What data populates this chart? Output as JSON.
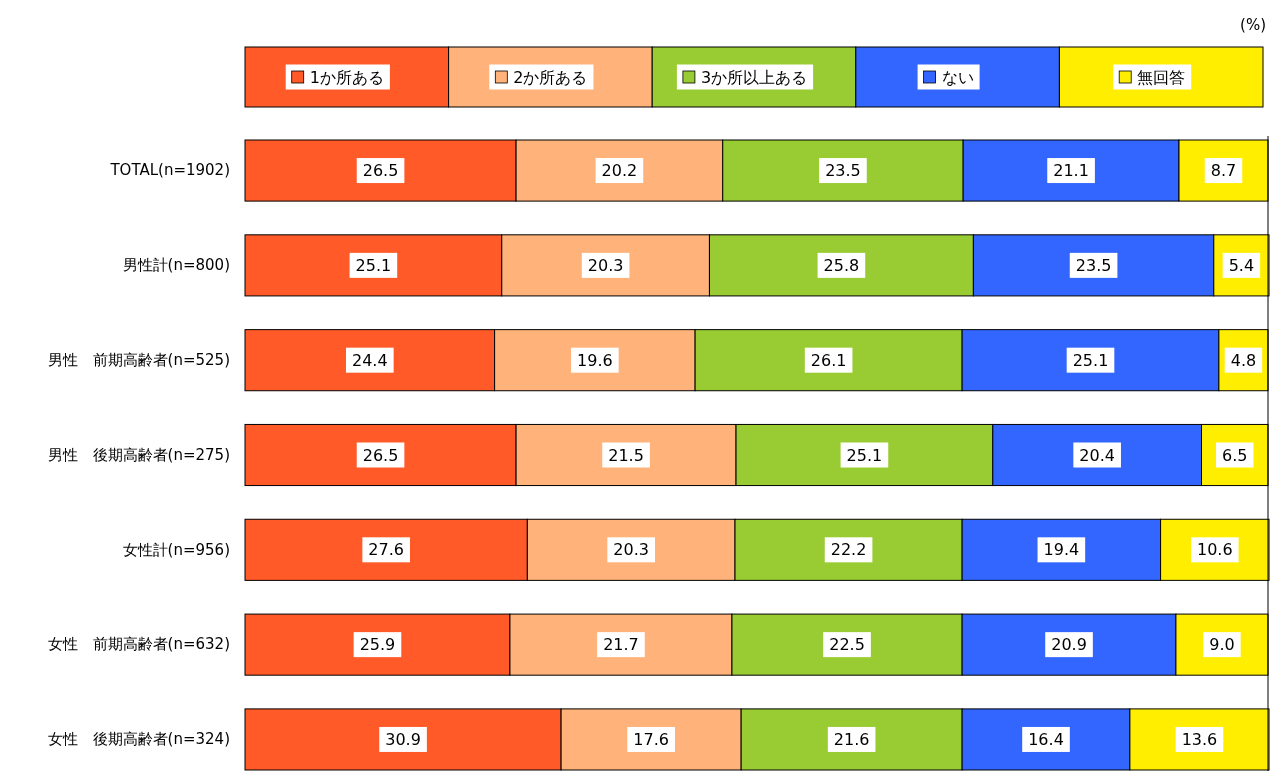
{
  "chart_data": {
    "type": "bar",
    "orientation": "horizontal",
    "stacked": true,
    "annotations": [
      "(%)"
    ],
    "categories": [
      "TOTAL(n=1902)",
      "男性計(n=800)",
      "男性　前期高齢者(n=525)",
      "男性　後期高齢者(n=275)",
      "女性計(n=956)",
      "女性　前期高齢者(n=632)",
      "女性　後期高齢者(n=324)"
    ],
    "series": [
      {
        "name": "1か所ある",
        "color": "#ff5a28",
        "values": [
          26.5,
          25.1,
          24.4,
          26.5,
          27.6,
          25.9,
          30.9
        ],
        "value_labels": [
          "26.5",
          "25.1",
          "24.4",
          "26.5",
          "27.6",
          "25.9",
          "30.9"
        ]
      },
      {
        "name": "2か所ある",
        "color": "#ffb27a",
        "values": [
          20.2,
          20.3,
          19.6,
          21.5,
          20.3,
          21.7,
          17.6
        ],
        "value_labels": [
          "20.2",
          "20.3",
          "19.6",
          "21.5",
          "20.3",
          "21.7",
          "17.6"
        ]
      },
      {
        "name": "3か所以上ある",
        "color": "#99cc33",
        "values": [
          23.5,
          25.8,
          26.1,
          25.1,
          22.2,
          22.5,
          21.6
        ],
        "value_labels": [
          "23.5",
          "25.8",
          "26.1",
          "25.1",
          "22.2",
          "22.5",
          "21.6"
        ]
      },
      {
        "name": "ない",
        "color": "#3366ff",
        "values": [
          21.1,
          23.5,
          25.1,
          20.4,
          19.4,
          20.9,
          16.4
        ],
        "value_labels": [
          "21.1",
          "23.5",
          "25.1",
          "20.4",
          "19.4",
          "20.9",
          "16.4"
        ]
      },
      {
        "name": "無回答",
        "color": "#ffee00",
        "values": [
          8.7,
          5.4,
          4.8,
          6.5,
          10.6,
          9.0,
          13.6
        ],
        "value_labels": [
          "8.7",
          "5.4",
          "4.8",
          "6.5",
          "10.6",
          "9.0",
          "13.6"
        ]
      }
    ],
    "xlim": [
      0,
      100
    ],
    "legend": "top",
    "tick_labels": "y"
  }
}
